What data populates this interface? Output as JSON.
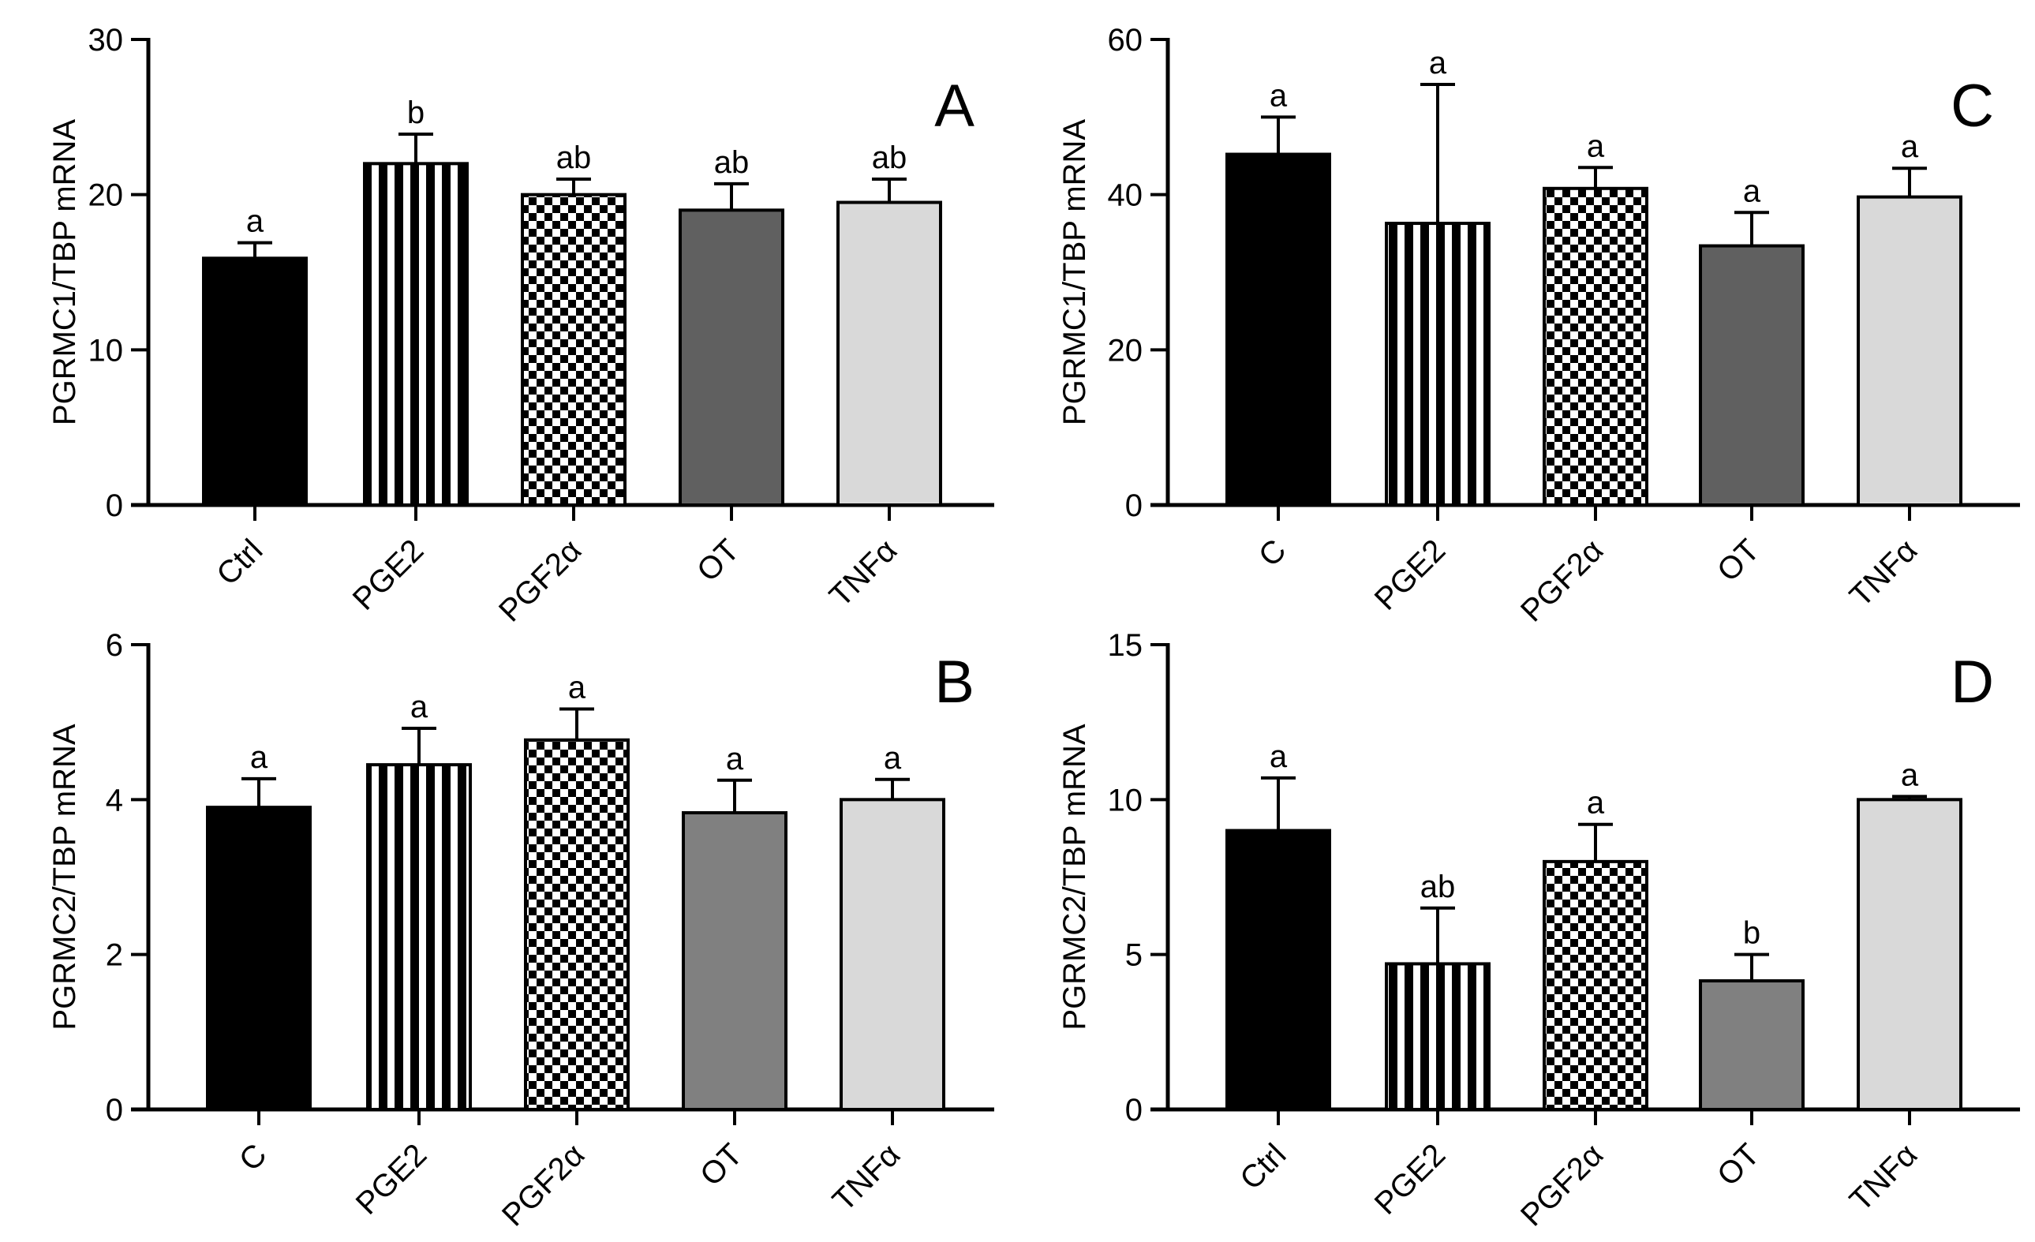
{
  "colors": {
    "black": "#000000",
    "white": "#ffffff",
    "dark_gray": "#606060",
    "mid_gray": "#808080",
    "light_gray": "#d9d9d9"
  },
  "chart_data": [
    {
      "type": "bar",
      "panel": "A",
      "ylabel": "PGRMC1/TBP mRNA",
      "ylim": [
        0,
        30
      ],
      "yticks": [
        0,
        10,
        20,
        30
      ],
      "categories": [
        "Ctrl",
        "PGE2",
        "PGF2α",
        "OT",
        "TNFα"
      ],
      "values": [
        15.9,
        22.0,
        20.0,
        19.0,
        19.5
      ],
      "errors": [
        1.0,
        1.9,
        1.0,
        1.7,
        1.5
      ],
      "significance": [
        "a",
        "b",
        "ab",
        "ab",
        "ab"
      ],
      "fills": [
        "solid-black",
        "vertical-stripes",
        "checker",
        "dark-gray",
        "light-gray"
      ]
    },
    {
      "type": "bar",
      "panel": "B",
      "ylabel": "PGRMC2/TBP mRNA",
      "ylim": [
        0,
        6
      ],
      "yticks": [
        0,
        2,
        4,
        6
      ],
      "categories": [
        "C",
        "PGE2",
        "PGF2α",
        "OT",
        "TNFα"
      ],
      "values": [
        3.9,
        4.45,
        4.77,
        3.83,
        4.0
      ],
      "errors": [
        0.37,
        0.47,
        0.4,
        0.42,
        0.26
      ],
      "significance": [
        "a",
        "a",
        "a",
        "a",
        "a"
      ],
      "fills": [
        "solid-black",
        "vertical-stripes",
        "checker",
        "mid-gray",
        "light-gray"
      ]
    },
    {
      "type": "bar",
      "panel": "C",
      "ylabel": "PGRMC1/TBP mRNA",
      "ylim": [
        0,
        60
      ],
      "yticks": [
        0,
        20,
        40,
        60
      ],
      "categories": [
        "C",
        "PGE2",
        "PGF2α",
        "OT",
        "TNFα"
      ],
      "values": [
        45.2,
        36.3,
        40.8,
        33.4,
        39.7
      ],
      "errors": [
        4.8,
        17.9,
        2.7,
        4.3,
        3.7
      ],
      "significance": [
        "a",
        "a",
        "a",
        "a",
        "a"
      ],
      "fills": [
        "solid-black",
        "vertical-stripes",
        "checker",
        "dark-gray",
        "light-gray"
      ]
    },
    {
      "type": "bar",
      "panel": "D",
      "ylabel": "PGRMC2/TBP mRNA",
      "ylim": [
        0,
        15
      ],
      "yticks": [
        0,
        5,
        10,
        15
      ],
      "categories": [
        "Ctrl",
        "PGE2",
        "PGF2α",
        "OT",
        "TNFα"
      ],
      "values": [
        9.0,
        4.7,
        8.0,
        4.15,
        10.0
      ],
      "errors": [
        1.7,
        1.8,
        1.2,
        0.85,
        0.1
      ],
      "significance": [
        "a",
        "ab",
        "a",
        "b",
        "a"
      ],
      "fills": [
        "solid-black",
        "vertical-stripes",
        "checker",
        "mid-gray",
        "light-gray"
      ]
    }
  ]
}
